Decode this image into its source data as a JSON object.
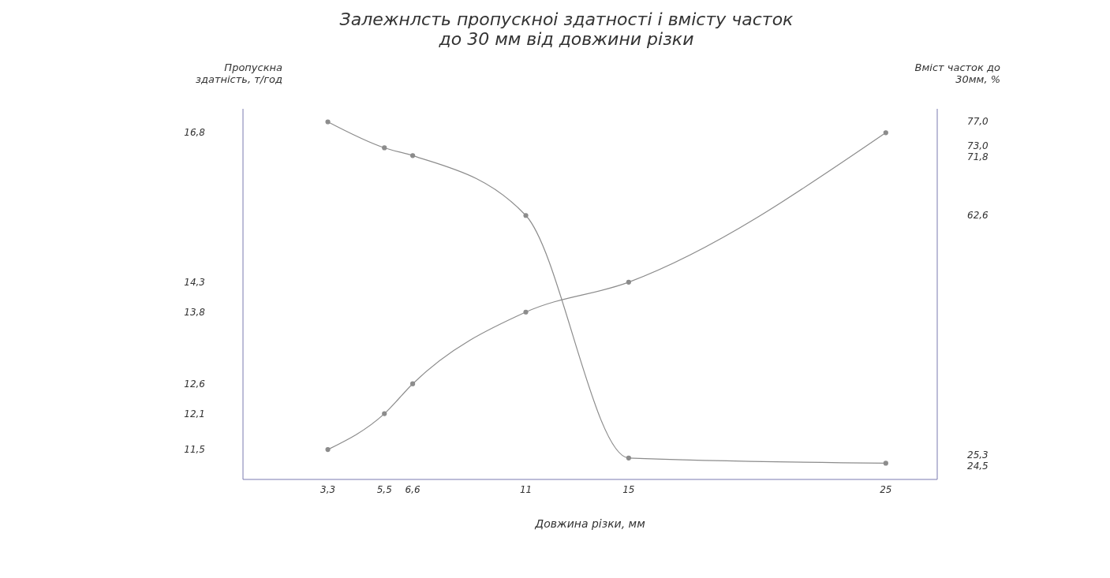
{
  "chart_data": {
    "type": "line",
    "title": "Залежнлсть пропускноі здатності і вмісту часток до 30 мм від довжини різки",
    "xlabel": "Довжина різки, мм",
    "ylabel": "Пропускна здатність, т/год",
    "y2label": "Вміст часток до 30мм, %",
    "x": [
      3.3,
      5.5,
      6.6,
      11,
      15,
      25
    ],
    "series": [
      {
        "color": "#8c8c8c",
        "values": [
          11.5,
          12.1,
          12.6,
          13.8,
          14.3,
          16.8
        ]
      },
      {
        "color": "#8c8c8c",
        "axis": "y2",
        "values": [
          77.0,
          73.0,
          71.8,
          62.6,
          25.3,
          24.5
        ]
      }
    ],
    "xlim": [
      0,
      27
    ],
    "xticks": [
      {
        "value": 3.3,
        "label": "3,3"
      },
      {
        "value": 5.5,
        "label": "5,5"
      },
      {
        "value": 6.6,
        "label": "6,6"
      },
      11,
      15,
      25
    ],
    "ylim": [
      11,
      17.2
    ],
    "yticks": [
      {
        "value": 11.5,
        "label": "11,5"
      },
      {
        "value": 12.1,
        "label": "12,1"
      },
      {
        "value": 12.6,
        "label": "12,6"
      },
      {
        "value": 13.8,
        "label": "13,8"
      },
      {
        "value": 14.3,
        "label": "14,3"
      },
      {
        "value": 16.8,
        "label": "16,8"
      }
    ],
    "y2lim": [
      22,
      79
    ],
    "y2ticks": [
      {
        "value": 24.5,
        "label": "24,5"
      },
      {
        "value": 25.3,
        "label": "25,3"
      },
      {
        "value": 62.6,
        "label": "62,6"
      },
      {
        "value": 71.8,
        "label": "71,8"
      },
      {
        "value": 73.0,
        "label": "73,0"
      },
      {
        "value": 77.0,
        "label": "77,0"
      }
    ],
    "grid": false,
    "legend": false,
    "marker": "circle",
    "line_style": "solid"
  }
}
